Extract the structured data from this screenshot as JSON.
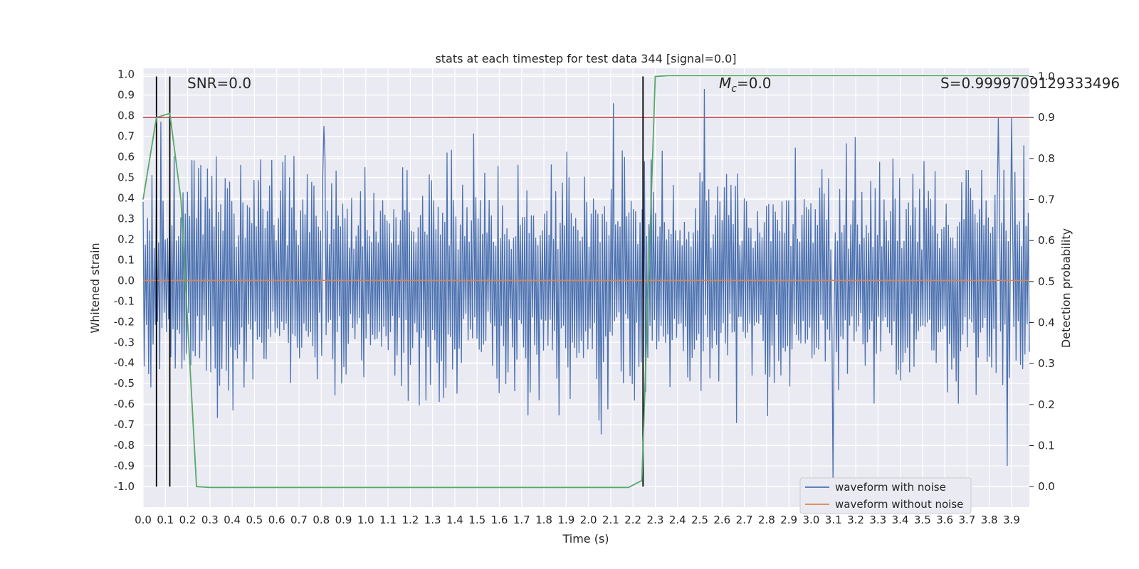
{
  "chart_data": {
    "type": "line",
    "title": "stats at each timestep for test data 344 [signal=0.0]",
    "xlabel": "Time (s)",
    "ylabel": "Whitened strain",
    "y2label": "Detection probability",
    "xlim": [
      0.0,
      3.98
    ],
    "ylim": [
      -1.1,
      1.03
    ],
    "y2lim": [
      -0.05,
      1.02
    ],
    "xticks": [
      "0.0",
      "0.1",
      "0.2",
      "0.3",
      "0.4",
      "0.5",
      "0.6",
      "0.7",
      "0.8",
      "0.9",
      "1.0",
      "1.1",
      "1.2",
      "1.3",
      "1.4",
      "1.5",
      "1.6",
      "1.7",
      "1.8",
      "1.9",
      "2.0",
      "2.1",
      "2.2",
      "2.3",
      "2.4",
      "2.5",
      "2.6",
      "2.7",
      "2.8",
      "2.9",
      "3.0",
      "3.1",
      "3.2",
      "3.3",
      "3.4",
      "3.5",
      "3.6",
      "3.7",
      "3.8",
      "3.9"
    ],
    "yticks": [
      "1.0",
      "0.9",
      "0.8",
      "0.7",
      "0.6",
      "0.5",
      "0.4",
      "0.3",
      "0.2",
      "0.1",
      "0.0",
      "-0.1",
      "-0.2",
      "-0.3",
      "-0.4",
      "-0.5",
      "-0.6",
      "-0.7",
      "-0.8",
      "-0.9",
      "-1.0"
    ],
    "y2ticks": [
      "1.0",
      "0.9",
      "0.8",
      "0.7",
      "0.6",
      "0.5",
      "0.4",
      "0.3",
      "0.2",
      "0.1",
      "0.0"
    ],
    "grid": true,
    "legend_position": "lower-right",
    "series": [
      {
        "name": "waveform with noise",
        "color": "#4c72b0",
        "axis": "left",
        "kind": "noise",
        "description_values": {
          "sample_count": 800,
          "typical_range": [
            -0.5,
            0.5
          ],
          "extremes": [
            -0.99,
            0.93
          ],
          "peaks": [
            [
              0.08,
              0.77
            ],
            [
              0.81,
              0.75
            ],
            [
              2.11,
              0.86
            ],
            [
              2.52,
              0.93
            ],
            [
              3.1,
              -0.99
            ],
            [
              3.84,
              0.79
            ],
            [
              3.9,
              0.79
            ],
            [
              3.88,
              -0.9
            ]
          ]
        }
      },
      {
        "name": "waveform without noise",
        "color": "#dd8452",
        "axis": "left",
        "x": [
          0.0,
          3.98
        ],
        "y": [
          0.0,
          0.0
        ]
      },
      {
        "color": "#55a868",
        "axis": "right",
        "x": [
          0.0,
          0.06,
          0.12,
          0.17,
          0.22,
          0.24,
          0.3,
          1.0,
          2.0,
          2.18,
          2.24,
          2.3,
          2.36,
          3.98
        ],
        "y": [
          0.7,
          0.9,
          0.91,
          0.7,
          0.2,
          0.0,
          -0.002,
          -0.002,
          -0.002,
          -0.002,
          0.015,
          1.0,
          1.002,
          1.002
        ]
      }
    ],
    "hlines": [
      {
        "axis": "right",
        "value": 0.9,
        "color": "#c44e52"
      }
    ],
    "vlines": [
      {
        "x": 0.06,
        "color": "#000000"
      },
      {
        "x": 0.12,
        "color": "#000000"
      },
      {
        "x": 2.245,
        "color": "#000000"
      }
    ],
    "annotations": [
      {
        "text": "SNR=0.0"
      },
      {
        "text_main": "M",
        "text_sub": "c",
        "text_rest": "=0.0"
      },
      {
        "text": "S=0.9999709129333496"
      }
    ]
  }
}
